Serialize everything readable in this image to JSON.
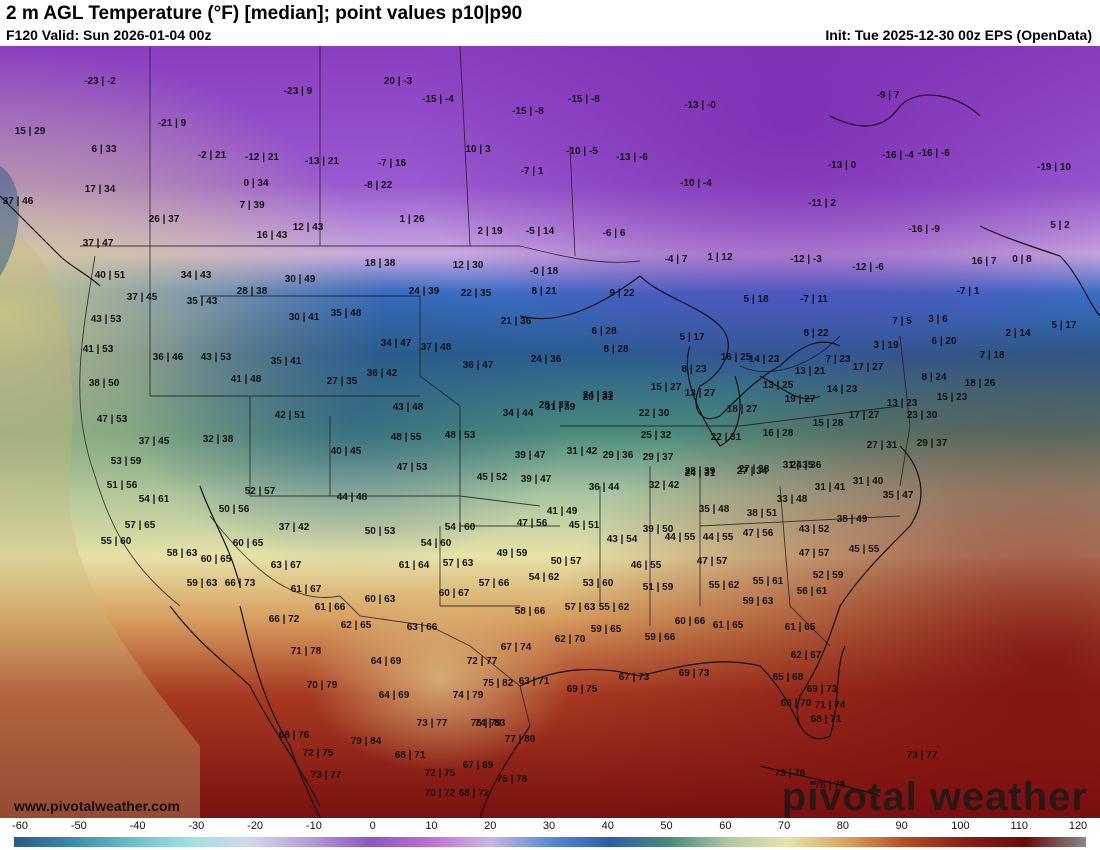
{
  "header": {
    "title": "2 m AGL Temperature (°F) [median]; point values p10|p90",
    "valid": "F120 Valid: Sun 2026-01-04 00z",
    "init": "Init: Tue 2025-12-30 00z EPS (OpenData)"
  },
  "watermark": {
    "site": "www.pivotalweather.com",
    "logo": "pivotal weather"
  },
  "colorbar": {
    "ticks": [
      "-60",
      "-50",
      "-40",
      "-30",
      "-20",
      "-10",
      "0",
      "10",
      "20",
      "30",
      "40",
      "50",
      "60",
      "70",
      "80",
      "90",
      "100",
      "110",
      "120"
    ],
    "colors": [
      "#2a5a80",
      "#3c8fa8",
      "#6cc0cc",
      "#a6e0e4",
      "#d2d6ec",
      "#b49ad6",
      "#8a56c2",
      "#c070d2",
      "#c8b8e4",
      "#5a8ad6",
      "#2c5ea8",
      "#4a8a7c",
      "#b0c8a4",
      "#e8e4aa",
      "#d8a05a",
      "#b44a26",
      "#8a1c14",
      "#6a0a0a",
      "#8a8a8a"
    ]
  },
  "point_values": [
    "-23 | -2",
    "-23 | 9",
    "20 | -3",
    "-15 | -4",
    "-15 | -8",
    "-15 | -8",
    "-13 | -0",
    "-9 | 7",
    "15 | 29",
    "-21 | 9",
    "6 | 33",
    "-2 | 21",
    "-12 | 21",
    "-13 | 21",
    "-7 | 16",
    "10 | 3",
    "-10 | -5",
    "-13 | -6",
    "-13 | 0",
    "-16 | -4",
    "-16 | -6",
    "-19 | 10",
    "17 | 34",
    "0 | 34",
    "-8 | 22",
    "-7 | 1",
    "-10 | -4",
    "-11 | 2",
    "37 | 46",
    "26 | 37",
    "7 | 39",
    "1 | 26",
    "16 | 43",
    "12 | 43",
    "2 | 19",
    "-5 | 14",
    "-6 | 6",
    "-16 | -9",
    "5 | 2",
    "37 | 47",
    "40 | 51",
    "34 | 43",
    "28 | 38",
    "30 | 49",
    "18 | 38",
    "12 | 30",
    "-0 | 18",
    "-4 | 7",
    "1 | 12",
    "-12 | -3",
    "-12 | -6",
    "16 | 7",
    "0 | 8",
    "37 | 45",
    "35 | 43",
    "24 | 39",
    "22 | 35",
    "8 | 21",
    "9 | 22",
    "5 | 18",
    "-7 | 11",
    "-7 | 1",
    "43 | 53",
    "30 | 41",
    "35 | 48",
    "21 | 36",
    "6 | 28",
    "5 | 17",
    "8 | 22",
    "7 | 5",
    "3 | 6",
    "2 | 14",
    "5 | 17",
    "41 | 53",
    "36 | 46",
    "43 | 53",
    "34 | 47",
    "37 | 48",
    "8 | 28",
    "3 | 19",
    "6 | 20",
    "7 | 18",
    "38 | 50",
    "41 | 48",
    "35 | 41",
    "27 | 35",
    "36 | 42",
    "36 | 47",
    "24 | 36",
    "8 | 23",
    "16 | 25",
    "14 | 23",
    "7 | 23",
    "17 | 27",
    "8 | 24",
    "18 | 26",
    "47 | 53",
    "42 | 51",
    "43 | 48",
    "34 | 44",
    "28 | 37",
    "20 | 31",
    "15 | 27",
    "13 | 27",
    "13 | 25",
    "13 | 21",
    "14 | 23",
    "13 | 23",
    "15 | 23",
    "37 | 45",
    "32 | 38",
    "48 | 55",
    "48 | 53",
    "31 | 39",
    "24 | 33",
    "22 | 30",
    "18 | 27",
    "19 | 27",
    "17 | 27",
    "23 | 30",
    "53 | 59",
    "40 | 45",
    "39 | 47",
    "31 | 42",
    "29 | 36",
    "25 | 32",
    "22 | 31",
    "16 | 28",
    "15 | 28",
    "27 | 31",
    "29 | 37",
    "51 | 56",
    "47 | 53",
    "45 | 52",
    "39 | 47",
    "29 | 37",
    "24 | 31",
    "27 | 34",
    "31 | 35",
    "54 | 61",
    "52 | 57",
    "44 | 48",
    "36 | 44",
    "32 | 42",
    "28 | 39",
    "27 | 38",
    "24 | 36",
    "31 | 41",
    "31 | 40",
    "35 | 47",
    "50 | 56",
    "41 | 49",
    "35 | 48",
    "38 | 51",
    "33 | 48",
    "38 | 49",
    "57 | 65",
    "37 | 42",
    "50 | 53",
    "54 | 60",
    "47 | 56",
    "45 | 51",
    "43 | 54",
    "39 | 50",
    "43 | 52",
    "55 | 60",
    "60 | 65",
    "54 | 60",
    "49 | 59",
    "44 | 55",
    "44 | 55",
    "47 | 56",
    "47 | 57",
    "45 | 55",
    "58 | 63",
    "60 | 65",
    "63 | 67",
    "61 | 64",
    "57 | 63",
    "50 | 57",
    "46 | 55",
    "47 | 57",
    "52 | 59",
    "59 | 63",
    "66 | 73",
    "61 | 67",
    "54 | 62",
    "57 | 66",
    "53 | 60",
    "51 | 59",
    "55 | 62",
    "55 | 61",
    "56 | 61",
    "61 | 66",
    "60 | 63",
    "60 | 67",
    "58 | 66",
    "57 | 63",
    "55 | 62",
    "59 | 63",
    "66 | 72",
    "62 | 65",
    "63 | 66",
    "62 | 70",
    "59 | 65",
    "59 | 66",
    "60 | 66",
    "61 | 65",
    "61 | 65",
    "71 | 78",
    "64 | 69",
    "67 | 74",
    "72 | 77",
    "62 | 67",
    "70 | 79",
    "75 | 82",
    "63 | 71",
    "69 | 75",
    "67 | 73",
    "69 | 73",
    "65 | 68",
    "69 | 73",
    "64 | 69",
    "74 | 79",
    "74 | 83",
    "66 | 70",
    "71 | 74",
    "68 | 76",
    "73 | 77",
    "76 | 79",
    "68 | 71",
    "72 | 75",
    "79 | 84",
    "77 | 80",
    "73 | 77",
    "68 | 71",
    "67 | 69",
    "72 | 75",
    "73 | 76",
    "73 | 77",
    "70 | 72",
    "75 | 78",
    "68 | 72",
    "76 | 78"
  ]
}
